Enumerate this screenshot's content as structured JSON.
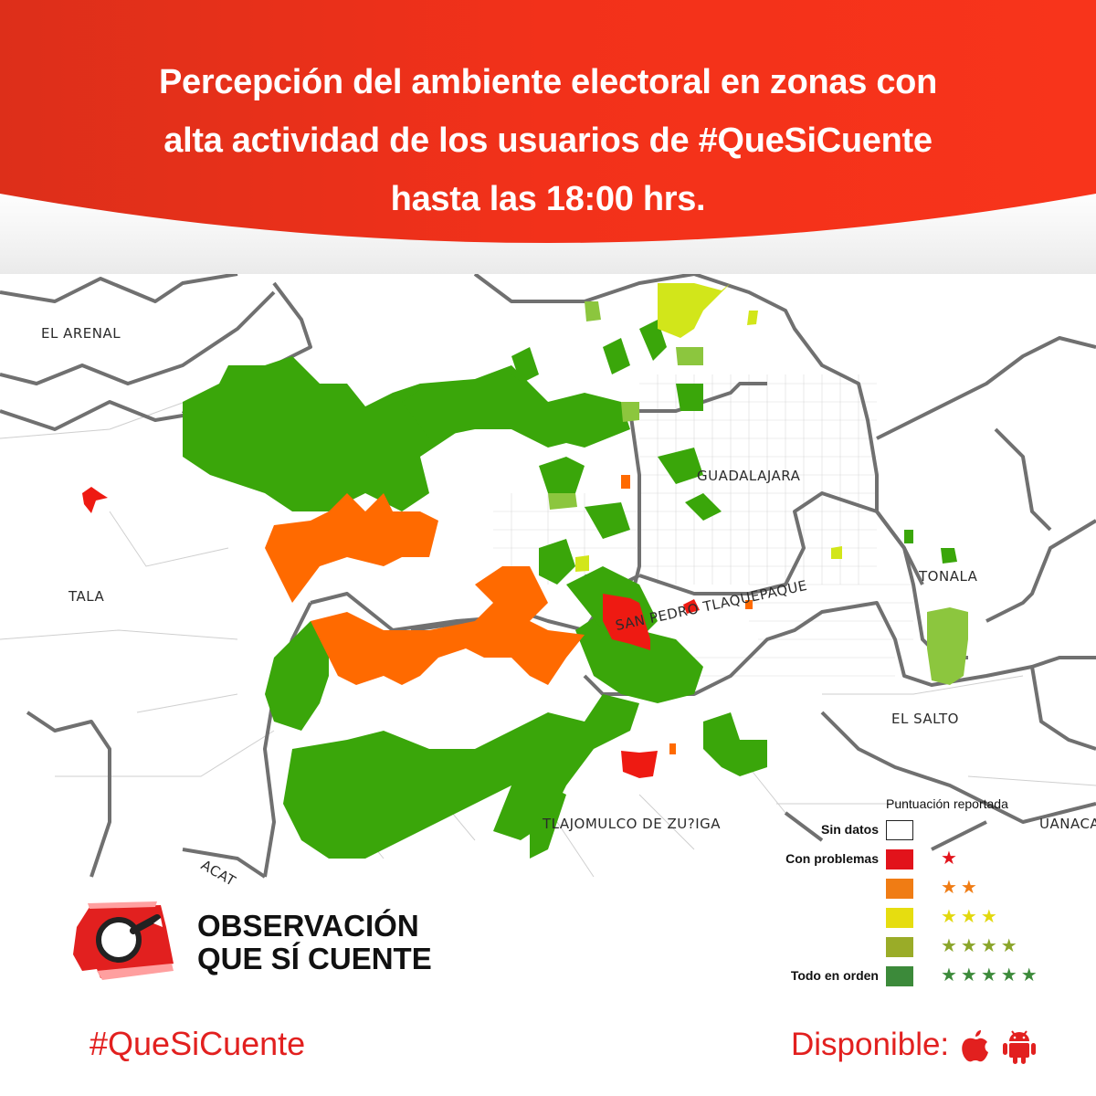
{
  "header": {
    "title_lines": [
      "Percepción del ambiente electoral en zonas con",
      "alta actividad de los usuarios de #QueSiCuente",
      "hasta las 18:00 hrs."
    ],
    "gradient": [
      "#e2351c",
      "#f6301a"
    ]
  },
  "map": {
    "labels": {
      "el_arenal": "EL ARENAL",
      "tala": "TALA",
      "guadalajara": "GUADALAJARA",
      "tonala": "TONALA",
      "san_pedro": "SAN PEDRO TLAQUEPAQUE",
      "el_salto": "EL SALTO",
      "tlajomulco": "TLAJOMULCO DE ZU?IGA",
      "acatlan": "ACAT",
      "juanacatlan": "UANACA"
    }
  },
  "legend": {
    "title": "Puntuación reportada",
    "items": [
      {
        "label": "Sin datos",
        "color": "#ffffff",
        "stars": "",
        "star_color": ""
      },
      {
        "label": "Con problemas",
        "color": "#e2131b",
        "stars": "★",
        "star_color": "#e2131b"
      },
      {
        "label": "",
        "color": "#f07c14",
        "stars": "★★",
        "star_color": "#f07c14"
      },
      {
        "label": "",
        "color": "#e6dd10",
        "stars": "★★★",
        "star_color": "#e2d80e"
      },
      {
        "label": "",
        "color": "#9aac28",
        "stars": "★★★★",
        "star_color": "#8aa52a"
      },
      {
        "label": "Todo en orden",
        "color": "#3c8a3a",
        "stars": "★★★★★",
        "star_color": "#3c8a3a"
      }
    ]
  },
  "colors": {
    "good": "#3aa60a",
    "bad": "#ee1a12",
    "orange": "#ff6a00",
    "yellow": "#d2e61a",
    "lightgreen": "#8cc63e",
    "accent": "#e2201f"
  },
  "brand": {
    "line1": "OBSERVACIÓN",
    "line2": "QUE SÍ CUENTE"
  },
  "footer": {
    "hashtag": "#QueSiCuente",
    "available": "Disponible:",
    "icons": [
      "apple-icon",
      "android-icon"
    ]
  }
}
